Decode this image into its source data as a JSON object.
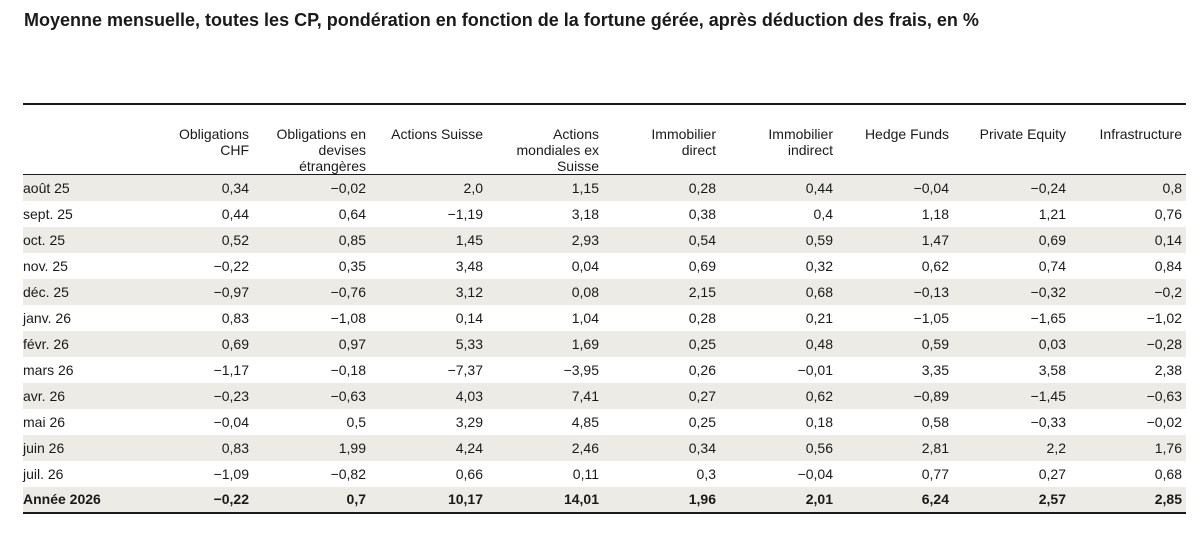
{
  "chart_data": {
    "type": "table",
    "title": "Moyenne mensuelle, toutes les CP, pondération en fonction de la fortune gérée, après déduction des frais, en %",
    "columns": [
      "",
      "Obligations CHF",
      "Obligations en devises étrangères",
      "Actions Suisse",
      "Actions mondiales ex Suisse",
      "Immobilier direct",
      "Immobilier indirect",
      "Hedge Funds",
      "Private Equity",
      "Infrastructure"
    ],
    "rows": [
      {
        "label": "août 25",
        "values": [
          "0,34",
          "−0,02",
          "2,0",
          "1,15",
          "0,28",
          "0,44",
          "−0,04",
          "−0,24",
          "0,8"
        ]
      },
      {
        "label": "sept. 25",
        "values": [
          "0,44",
          "0,64",
          "−1,19",
          "3,18",
          "0,38",
          "0,4",
          "1,18",
          "1,21",
          "0,76"
        ]
      },
      {
        "label": "oct. 25",
        "values": [
          "0,52",
          "0,85",
          "1,45",
          "2,93",
          "0,54",
          "0,59",
          "1,47",
          "0,69",
          "0,14"
        ]
      },
      {
        "label": "nov. 25",
        "values": [
          "−0,22",
          "0,35",
          "3,48",
          "0,04",
          "0,69",
          "0,32",
          "0,62",
          "0,74",
          "0,84"
        ]
      },
      {
        "label": "déc. 25",
        "values": [
          "−0,97",
          "−0,76",
          "3,12",
          "0,08",
          "2,15",
          "0,68",
          "−0,13",
          "−0,32",
          "−0,2"
        ]
      },
      {
        "label": "janv. 26",
        "values": [
          "0,83",
          "−1,08",
          "0,14",
          "1,04",
          "0,28",
          "0,21",
          "−1,05",
          "−1,65",
          "−1,02"
        ]
      },
      {
        "label": "févr. 26",
        "values": [
          "0,69",
          "0,97",
          "5,33",
          "1,69",
          "0,25",
          "0,48",
          "0,59",
          "0,03",
          "−0,28"
        ]
      },
      {
        "label": "mars 26",
        "values": [
          "−1,17",
          "−0,18",
          "−7,37",
          "−3,95",
          "0,26",
          "−0,01",
          "3,35",
          "3,58",
          "2,38"
        ]
      },
      {
        "label": "avr. 26",
        "values": [
          "−0,23",
          "−0,63",
          "4,03",
          "7,41",
          "0,27",
          "0,62",
          "−0,89",
          "−1,45",
          "−0,63"
        ]
      },
      {
        "label": "mai 26",
        "values": [
          "−0,04",
          "0,5",
          "3,29",
          "4,85",
          "0,25",
          "0,18",
          "0,58",
          "−0,33",
          "−0,02"
        ]
      },
      {
        "label": "juin 26",
        "values": [
          "0,83",
          "1,99",
          "4,24",
          "2,46",
          "0,34",
          "0,56",
          "2,81",
          "2,2",
          "1,76"
        ]
      },
      {
        "label": "juil. 26",
        "values": [
          "−1,09",
          "−0,82",
          "0,66",
          "0,11",
          "0,3",
          "−0,04",
          "0,77",
          "0,27",
          "0,68"
        ]
      }
    ],
    "total": {
      "label": "Année 2026",
      "values": [
        "−0,22",
        "0,7",
        "10,17",
        "14,01",
        "1,96",
        "2,01",
        "6,24",
        "2,57",
        "2,85"
      ]
    }
  }
}
